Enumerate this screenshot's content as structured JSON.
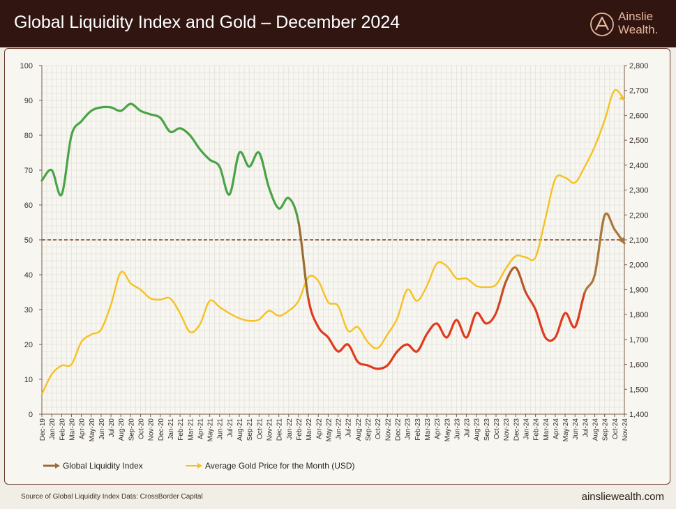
{
  "header": {
    "title": "Global Liquidity Index and Gold – December 2024"
  },
  "logo": {
    "line1": "Ainslie",
    "line2": "Wealth.",
    "icon": "ainslie-a-logo-icon"
  },
  "footer": {
    "source": "Source of Global Liquidity Index Data: CrossBorder Capital",
    "url": "ainsliewealth.com"
  },
  "colors": {
    "header_bg": "#301511",
    "liquidity_green": "#4aa447",
    "liquidity_red": "#e03a1e",
    "liquidity_legend": "#9c6b3c",
    "gold": "#f6c120",
    "reference_line": "#7a3e22"
  },
  "chart_data": {
    "type": "line",
    "categories": [
      "Dec-19",
      "Jan-20",
      "Feb-20",
      "Mar-20",
      "Apr-20",
      "May-20",
      "Jun-20",
      "Jul-20",
      "Aug-20",
      "Sep-20",
      "Oct-20",
      "Nov-20",
      "Dec-20",
      "Jan-21",
      "Feb-21",
      "Mar-21",
      "Apr-21",
      "May-21",
      "Jun-21",
      "Jul-21",
      "Aug-21",
      "Sep-21",
      "Oct-21",
      "Nov-21",
      "Dec-21",
      "Jan-22",
      "Feb-22",
      "Mar-22",
      "Apr-22",
      "May-22",
      "Jun-22",
      "Jul-22",
      "Aug-22",
      "Sep-22",
      "Oct-22",
      "Nov-22",
      "Dec-22",
      "Jan-23",
      "Feb-23",
      "Mar-23",
      "Apr-23",
      "May-23",
      "Jun-23",
      "Jul-23",
      "Aug-23",
      "Sep-23",
      "Oct-23",
      "Nov-23",
      "Dec-23",
      "Jan-24",
      "Feb-24",
      "Mar-24",
      "Apr-24",
      "May-24",
      "Jun-24",
      "Jul-24",
      "Aug-24",
      "Sep-24",
      "Oct-24",
      "Nov-24"
    ],
    "series": [
      {
        "name": "Global Liquidity Index",
        "axis": "left",
        "values": [
          67,
          70,
          63,
          80,
          84,
          87,
          88,
          88,
          87,
          89,
          87,
          86,
          85,
          81,
          82,
          80,
          76,
          73,
          71,
          63,
          75,
          71,
          75,
          65,
          59,
          62,
          55,
          33,
          25,
          22,
          18,
          20,
          15,
          14,
          13,
          14,
          18,
          20,
          18,
          23,
          26,
          22,
          27,
          22,
          29,
          26,
          29,
          38,
          42,
          35,
          30,
          22,
          22,
          29,
          25,
          35,
          40,
          57,
          53,
          49
        ]
      },
      {
        "name": "Average Gold Price for the Month (USD)",
        "axis": "right",
        "values": [
          1480,
          1560,
          1595,
          1600,
          1690,
          1720,
          1740,
          1840,
          1970,
          1925,
          1900,
          1865,
          1860,
          1865,
          1805,
          1730,
          1760,
          1855,
          1830,
          1805,
          1785,
          1775,
          1780,
          1815,
          1795,
          1815,
          1855,
          1950,
          1935,
          1850,
          1835,
          1735,
          1750,
          1690,
          1665,
          1720,
          1785,
          1900,
          1855,
          1915,
          2005,
          1995,
          1945,
          1945,
          1915,
          1910,
          1920,
          1985,
          2035,
          2030,
          2030,
          2185,
          2345,
          2350,
          2330,
          2395,
          2475,
          2580,
          2700,
          2660
        ]
      }
    ],
    "y_left": {
      "min": 0,
      "max": 100,
      "ticks": [
        "0",
        "10",
        "20",
        "30",
        "40",
        "50",
        "60",
        "70",
        "80",
        "90",
        "100"
      ]
    },
    "y_right": {
      "min": 1400,
      "max": 2800,
      "ticks": [
        "1,400",
        "1,500",
        "1,600",
        "1,700",
        "1,800",
        "1,900",
        "2,000",
        "2,100",
        "2,200",
        "2,300",
        "2,400",
        "2,500",
        "2,600",
        "2,700",
        "2,800"
      ]
    },
    "reference_line": {
      "axis": "left",
      "value": 50
    },
    "grid": true,
    "legend": {
      "position": "bottom-left",
      "entries": [
        "Global Liquidity Index",
        "Average Gold Price for the Month (USD)"
      ]
    }
  }
}
